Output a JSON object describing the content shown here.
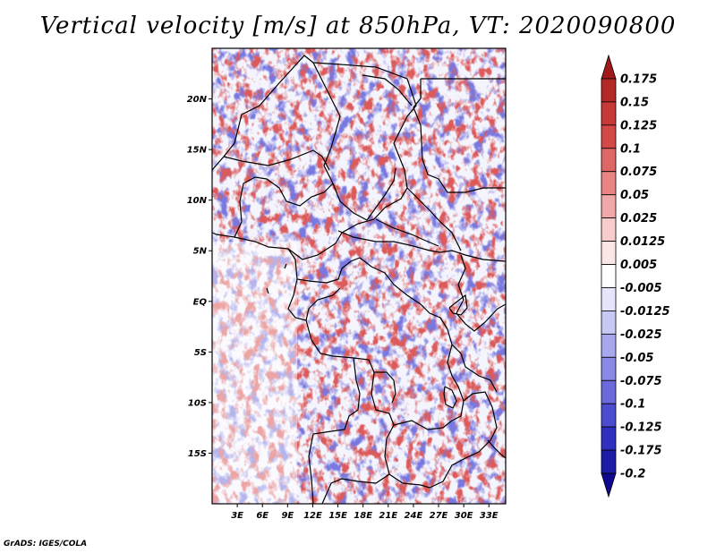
{
  "title": "Vertical velocity [m/s] at 850hPa, VT: 2020090800",
  "footer": "GrADS: IGES/COLA",
  "map": {
    "lon_range": [
      0,
      35
    ],
    "lat_range": [
      -20,
      25
    ],
    "lat_ticks": [
      {
        "value": 20,
        "label": "20N"
      },
      {
        "value": 15,
        "label": "15N"
      },
      {
        "value": 10,
        "label": "10N"
      },
      {
        "value": 5,
        "label": "5N"
      },
      {
        "value": 0,
        "label": "EQ"
      },
      {
        "value": -5,
        "label": "5S"
      },
      {
        "value": -10,
        "label": "10S"
      },
      {
        "value": -15,
        "label": "15S"
      }
    ],
    "lon_ticks": [
      {
        "value": 3,
        "label": "3E"
      },
      {
        "value": 6,
        "label": "6E"
      },
      {
        "value": 9,
        "label": "9E"
      },
      {
        "value": 12,
        "label": "12E"
      },
      {
        "value": 15,
        "label": "15E"
      },
      {
        "value": 18,
        "label": "18E"
      },
      {
        "value": 21,
        "label": "21E"
      },
      {
        "value": 24,
        "label": "24E"
      },
      {
        "value": 27,
        "label": "27E"
      },
      {
        "value": 30,
        "label": "30E"
      },
      {
        "value": 33,
        "label": "33E"
      }
    ]
  },
  "colorbar": {
    "levels": [
      "0.175",
      "0.15",
      "0.125",
      "0.1",
      "0.075",
      "0.05",
      "0.025",
      "0.0125",
      "0.005",
      "-0.005",
      "-0.0125",
      "-0.025",
      "-0.05",
      "-0.075",
      "-0.1",
      "-0.125",
      "-0.175",
      "-0.2"
    ],
    "colors": [
      "#a01a1a",
      "#b42828",
      "#c73838",
      "#d44848",
      "#df6666",
      "#e88484",
      "#f0a8a8",
      "#f6cccc",
      "#fbe6e6",
      "#ffffff",
      "#e4e4fa",
      "#c8c8f4",
      "#a8a8ee",
      "#8a8ae6",
      "#6a6adc",
      "#4c4cd0",
      "#3030c0",
      "#1c1ca8",
      "#100a90"
    ]
  }
}
